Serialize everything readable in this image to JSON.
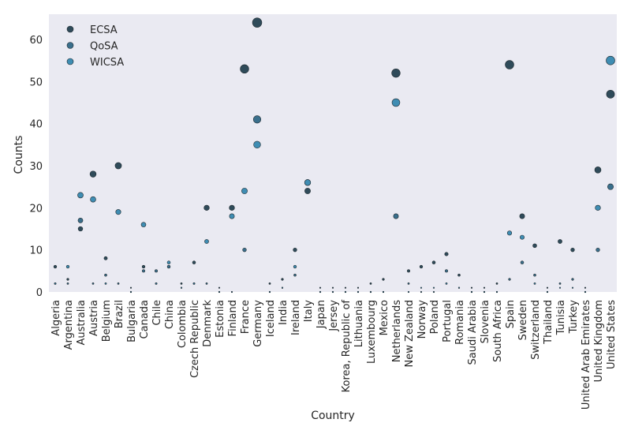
{
  "chart_data": {
    "type": "scatter",
    "title": "",
    "xlabel": "Country",
    "ylabel": "Counts",
    "ylim": [
      0,
      66
    ],
    "yticks": [
      0,
      10,
      20,
      30,
      40,
      50,
      60
    ],
    "grid": false,
    "legend_position": "top-left",
    "background": "#eaeaf2",
    "categories": [
      "Algeria",
      "Argentina",
      "Australia",
      "Austria",
      "Belgium",
      "Brazil",
      "Bulgaria",
      "Canada",
      "Chile",
      "China",
      "Colombia",
      "Czech Republic",
      "Denmark",
      "Estonia",
      "Finland",
      "France",
      "Germany",
      "Iceland",
      "India",
      "Ireland",
      "Italy",
      "Japan",
      "Jersey",
      "Korea, Republic of",
      "Lithuania",
      "Luxembourg",
      "Mexico",
      "Netherlands",
      "New Zealand",
      "Norway",
      "Poland",
      "Portugal",
      "Romania",
      "Saudi Arabia",
      "Slovenia",
      "South Africa",
      "Spain",
      "Sweden",
      "Switzerland",
      "Thailand",
      "Tunisia",
      "Turkey",
      "United Arab Emirates",
      "United Kingdom",
      "United States"
    ],
    "series": [
      {
        "name": "ECSA",
        "color": "#2f4b5a",
        "values": [
          6,
          3,
          15,
          28,
          8,
          30,
          1,
          6,
          2,
          6,
          2,
          7,
          20,
          1,
          20,
          53,
          64,
          2,
          3,
          10,
          24,
          1,
          1,
          1,
          1,
          2,
          3,
          52,
          5,
          6,
          7,
          9,
          4,
          1,
          1,
          2,
          54,
          18,
          11,
          1,
          12,
          10,
          1,
          29,
          47
        ]
      },
      {
        "name": "QoSA",
        "color": "#3a6f8c",
        "values": [
          2,
          2,
          17,
          2,
          4,
          2,
          0,
          5,
          5,
          6,
          1,
          2,
          2,
          0,
          0,
          10,
          41,
          0,
          1,
          4,
          26,
          0,
          0,
          0,
          0,
          0,
          0,
          18,
          2,
          0,
          0,
          5,
          1,
          0,
          0,
          0,
          3,
          7,
          4,
          0,
          2,
          3,
          0,
          10,
          25
        ]
      },
      {
        "name": "WICSA",
        "color": "#3f8db3",
        "values": [
          2,
          6,
          23,
          22,
          2,
          19,
          0,
          16,
          2,
          7,
          1,
          2,
          12,
          0,
          18,
          24,
          35,
          0,
          1,
          6,
          26,
          0,
          0,
          0,
          0,
          0,
          0,
          45,
          0,
          1,
          1,
          2,
          1,
          0,
          0,
          0,
          14,
          13,
          2,
          0,
          1,
          1,
          0,
          20,
          55
        ]
      }
    ]
  }
}
